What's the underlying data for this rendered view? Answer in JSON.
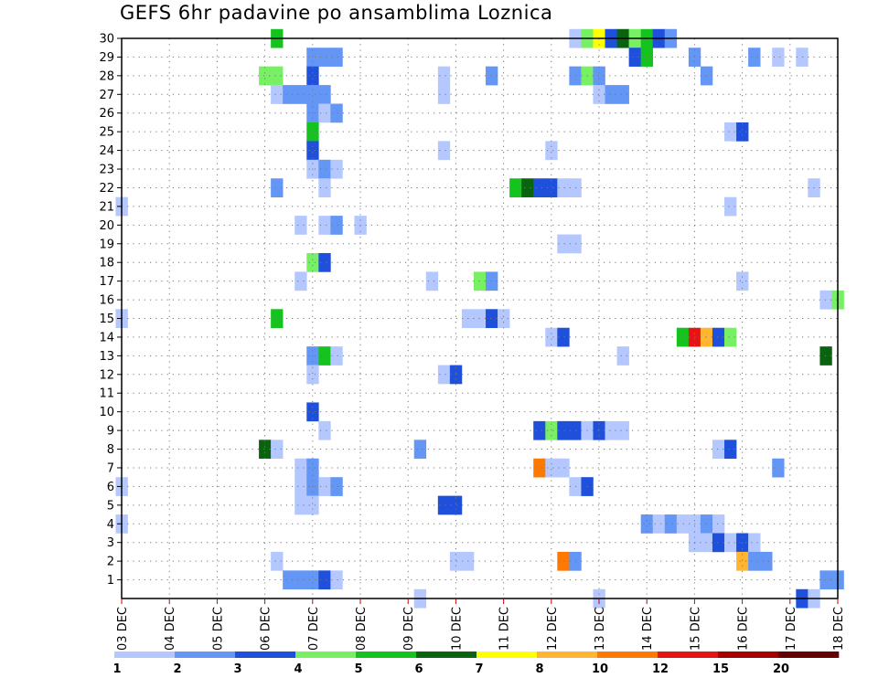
{
  "title": "GEFS 6hr padavine po ansamblima Loznica",
  "chart_data": {
    "type": "heatmap",
    "title": "GEFS 6hr padavine po ansamblima Loznica",
    "xlabel": "",
    "ylabel": "",
    "x_tick_labels": [
      "03 DEC",
      "04 DEC",
      "05 DEC",
      "06 DEC",
      "07 DEC",
      "08 DEC",
      "09 DEC",
      "10 DEC",
      "11 DEC",
      "12 DEC",
      "13 DEC",
      "14 DEC",
      "15 DEC",
      "16 DEC",
      "17 DEC",
      "18 DEC"
    ],
    "x_unit": "6-hour step from 03 DEC 00Z (4 steps per day)",
    "xlim": [
      0,
      60
    ],
    "y_tick_labels": [
      "1",
      "2",
      "3",
      "4",
      "5",
      "6",
      "7",
      "8",
      "9",
      "10",
      "11",
      "12",
      "13",
      "14",
      "15",
      "16",
      "17",
      "18",
      "19",
      "20",
      "21",
      "22",
      "23",
      "24",
      "25",
      "26",
      "27",
      "28",
      "29",
      "30"
    ],
    "ylim": [
      0,
      30
    ],
    "grid": true,
    "legend_placement": "bottom",
    "colorbar": {
      "labels": [
        "1",
        "2",
        "3",
        "4",
        "5",
        "6",
        "7",
        "8",
        "10",
        "12",
        "15",
        "20"
      ],
      "colors": [
        "#b4c8ff",
        "#6496f5",
        "#1e50dc",
        "#78f064",
        "#14c31e",
        "#0a640f",
        "#ffff00",
        "#ffb432",
        "#ff7800",
        "#e61414",
        "#a50000",
        "#640000"
      ]
    },
    "color_by_level": {
      "1": "#b4c8ff",
      "2": "#6496f5",
      "3": "#1e50dc",
      "4": "#78f064",
      "5": "#14c31e",
      "6": "#0a640f",
      "7": "#ffff00",
      "8": "#ffb432",
      "9": "#ff7800",
      "10": "#e61414",
      "11": "#a50000",
      "12": "#640000"
    },
    "cells_format": "[member, step, level]",
    "cells": [
      [
        30,
        13,
        5
      ],
      [
        30,
        38,
        1
      ],
      [
        30,
        39,
        4
      ],
      [
        30,
        40,
        7
      ],
      [
        30,
        41,
        3
      ],
      [
        30,
        42,
        6
      ],
      [
        30,
        43,
        4
      ],
      [
        30,
        44,
        5
      ],
      [
        30,
        45,
        3
      ],
      [
        30,
        46,
        2
      ],
      [
        29,
        16,
        2
      ],
      [
        29,
        17,
        2
      ],
      [
        29,
        18,
        2
      ],
      [
        29,
        43,
        3
      ],
      [
        29,
        44,
        5
      ],
      [
        29,
        48,
        2
      ],
      [
        29,
        53,
        2
      ],
      [
        29,
        55,
        1
      ],
      [
        29,
        57,
        1
      ],
      [
        28,
        12,
        4
      ],
      [
        28,
        13,
        4
      ],
      [
        28,
        16,
        3
      ],
      [
        28,
        27,
        1
      ],
      [
        28,
        31,
        2
      ],
      [
        28,
        38,
        2
      ],
      [
        28,
        39,
        4
      ],
      [
        28,
        40,
        2
      ],
      [
        28,
        49,
        2
      ],
      [
        27,
        13,
        1
      ],
      [
        27,
        14,
        2
      ],
      [
        27,
        15,
        2
      ],
      [
        27,
        16,
        2
      ],
      [
        27,
        17,
        2
      ],
      [
        27,
        27,
        1
      ],
      [
        27,
        40,
        1
      ],
      [
        27,
        41,
        2
      ],
      [
        27,
        42,
        2
      ],
      [
        26,
        16,
        2
      ],
      [
        26,
        17,
        1
      ],
      [
        26,
        18,
        2
      ],
      [
        25,
        16,
        5
      ],
      [
        25,
        51,
        1
      ],
      [
        25,
        52,
        3
      ],
      [
        24,
        16,
        3
      ],
      [
        24,
        27,
        1
      ],
      [
        24,
        36,
        1
      ],
      [
        23,
        16,
        1
      ],
      [
        23,
        17,
        2
      ],
      [
        23,
        18,
        1
      ],
      [
        22,
        13,
        2
      ],
      [
        22,
        17,
        1
      ],
      [
        22,
        33,
        5
      ],
      [
        22,
        34,
        6
      ],
      [
        22,
        35,
        3
      ],
      [
        22,
        36,
        3
      ],
      [
        22,
        37,
        1
      ],
      [
        22,
        38,
        1
      ],
      [
        22,
        58,
        1
      ],
      [
        21,
        0,
        1
      ],
      [
        21,
        51,
        1
      ],
      [
        20,
        15,
        1
      ],
      [
        20,
        17,
        1
      ],
      [
        20,
        18,
        2
      ],
      [
        20,
        20,
        1
      ],
      [
        19,
        37,
        1
      ],
      [
        19,
        38,
        1
      ],
      [
        18,
        16,
        4
      ],
      [
        18,
        17,
        3
      ],
      [
        17,
        15,
        1
      ],
      [
        17,
        26,
        1
      ],
      [
        17,
        30,
        4
      ],
      [
        17,
        31,
        2
      ],
      [
        17,
        52,
        1
      ],
      [
        16,
        59,
        1
      ],
      [
        16,
        60,
        4
      ],
      [
        15,
        0,
        1
      ],
      [
        15,
        13,
        5
      ],
      [
        15,
        29,
        1
      ],
      [
        15,
        30,
        1
      ],
      [
        15,
        31,
        3
      ],
      [
        15,
        32,
        1
      ],
      [
        14,
        36,
        1
      ],
      [
        14,
        37,
        3
      ],
      [
        14,
        47,
        5
      ],
      [
        14,
        48,
        10
      ],
      [
        14,
        49,
        8
      ],
      [
        14,
        50,
        3
      ],
      [
        14,
        51,
        4
      ],
      [
        13,
        16,
        2
      ],
      [
        13,
        17,
        5
      ],
      [
        13,
        18,
        1
      ],
      [
        13,
        42,
        1
      ],
      [
        13,
        59,
        6
      ],
      [
        12,
        16,
        1
      ],
      [
        12,
        27,
        1
      ],
      [
        12,
        28,
        3
      ],
      [
        10,
        16,
        3
      ],
      [
        9,
        17,
        1
      ],
      [
        9,
        35,
        3
      ],
      [
        9,
        36,
        4
      ],
      [
        9,
        37,
        3
      ],
      [
        9,
        38,
        3
      ],
      [
        9,
        39,
        1
      ],
      [
        9,
        40,
        3
      ],
      [
        9,
        41,
        1
      ],
      [
        9,
        42,
        1
      ],
      [
        8,
        12,
        6
      ],
      [
        8,
        13,
        1
      ],
      [
        8,
        25,
        2
      ],
      [
        8,
        50,
        1
      ],
      [
        8,
        51,
        3
      ],
      [
        7,
        15,
        1
      ],
      [
        7,
        16,
        2
      ],
      [
        7,
        35,
        9
      ],
      [
        7,
        36,
        1
      ],
      [
        7,
        37,
        1
      ],
      [
        7,
        55,
        2
      ],
      [
        6,
        0,
        1
      ],
      [
        6,
        15,
        1
      ],
      [
        6,
        16,
        2
      ],
      [
        6,
        17,
        1
      ],
      [
        6,
        18,
        2
      ],
      [
        6,
        38,
        1
      ],
      [
        6,
        39,
        3
      ],
      [
        5,
        15,
        1
      ],
      [
        5,
        16,
        1
      ],
      [
        5,
        27,
        3
      ],
      [
        5,
        28,
        3
      ],
      [
        4,
        0,
        1
      ],
      [
        4,
        44,
        2
      ],
      [
        4,
        45,
        1
      ],
      [
        4,
        46,
        2
      ],
      [
        4,
        47,
        1
      ],
      [
        4,
        48,
        1
      ],
      [
        4,
        49,
        2
      ],
      [
        4,
        50,
        1
      ],
      [
        3,
        48,
        1
      ],
      [
        3,
        49,
        1
      ],
      [
        3,
        50,
        3
      ],
      [
        3,
        51,
        1
      ],
      [
        3,
        52,
        3
      ],
      [
        3,
        53,
        1
      ],
      [
        2,
        13,
        1
      ],
      [
        2,
        28,
        1
      ],
      [
        2,
        29,
        1
      ],
      [
        2,
        37,
        9
      ],
      [
        2,
        38,
        2
      ],
      [
        2,
        52,
        8
      ],
      [
        2,
        53,
        2
      ],
      [
        2,
        54,
        2
      ],
      [
        1,
        14,
        2
      ],
      [
        1,
        15,
        2
      ],
      [
        1,
        16,
        2
      ],
      [
        1,
        17,
        3
      ],
      [
        1,
        18,
        1
      ],
      [
        1,
        59,
        2
      ],
      [
        1,
        60,
        2
      ],
      [
        0,
        25,
        1
      ],
      [
        0,
        40,
        1
      ],
      [
        0,
        57,
        3
      ],
      [
        0,
        58,
        1
      ]
    ]
  }
}
